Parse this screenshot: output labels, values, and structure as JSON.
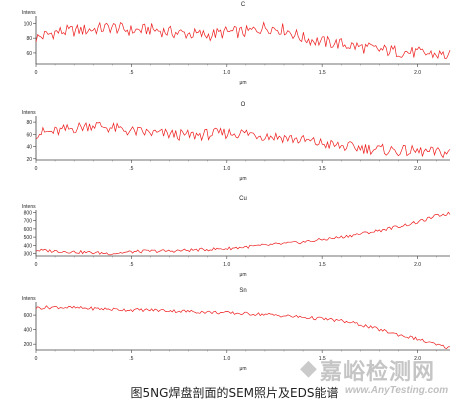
{
  "caption": "图5NG焊盘剖面的SEM照片及EDS能谱",
  "watermark": {
    "cn": "嘉峪检测网",
    "en": "www.AnyTesting.com",
    "logo_icon": "diamond-logo-icon"
  },
  "chart_data": [
    {
      "type": "line",
      "title": "C",
      "ylabel": "Intens",
      "xlabel": "μm",
      "xlim": [
        0,
        2.17
      ],
      "ylim": [
        45,
        110
      ],
      "yticks": [
        60,
        80,
        100
      ],
      "xticks": [
        0,
        0.5,
        1.0,
        1.5,
        2.0
      ],
      "xtick_labels": [
        "0",
        ".5",
        "1.0",
        "1.5",
        "2.0"
      ],
      "color": "#ee1c1c",
      "x": [
        0,
        0.1,
        0.2,
        0.3,
        0.4,
        0.5,
        0.6,
        0.7,
        0.8,
        0.9,
        1.0,
        1.1,
        1.2,
        1.3,
        1.4,
        1.5,
        1.6,
        1.7,
        1.8,
        1.9,
        2.0,
        2.1,
        2.17
      ],
      "y": [
        80,
        88,
        90,
        92,
        95,
        90,
        92,
        88,
        86,
        84,
        88,
        88,
        95,
        92,
        80,
        75,
        72,
        68,
        64,
        62,
        60,
        58,
        56
      ]
    },
    {
      "type": "line",
      "title": "O",
      "ylabel": "Intens",
      "xlabel": "μm",
      "xlim": [
        0,
        2.17
      ],
      "ylim": [
        18,
        90
      ],
      "yticks": [
        20,
        40,
        60,
        80
      ],
      "xticks": [
        0,
        0.5,
        1.0,
        1.5,
        2.0
      ],
      "xtick_labels": [
        "0",
        ".5",
        "1.0",
        "1.5",
        "2.0"
      ],
      "color": "#ee1c1c",
      "x": [
        0,
        0.1,
        0.2,
        0.3,
        0.4,
        0.5,
        0.6,
        0.7,
        0.8,
        0.9,
        1.0,
        1.1,
        1.2,
        1.3,
        1.4,
        1.5,
        1.6,
        1.7,
        1.8,
        1.9,
        2.0,
        2.1,
        2.17
      ],
      "y": [
        62,
        64,
        70,
        76,
        70,
        65,
        62,
        60,
        58,
        60,
        62,
        62,
        58,
        55,
        50,
        45,
        40,
        38,
        35,
        33,
        32,
        30,
        30
      ]
    },
    {
      "type": "line",
      "title": "Cu",
      "ylabel": "Intens",
      "xlabel": "μm",
      "xlim": [
        0,
        2.17
      ],
      "ylim": [
        270,
        830
      ],
      "yticks": [
        300,
        400,
        500,
        600,
        700,
        800
      ],
      "xticks": [
        0,
        0.5,
        1.0,
        1.5,
        2.0
      ],
      "xtick_labels": [
        "0",
        ".5",
        "1.0",
        "1.5",
        "2.0"
      ],
      "color": "#ee1c1c",
      "x": [
        0,
        0.1,
        0.2,
        0.3,
        0.4,
        0.5,
        0.6,
        0.7,
        0.8,
        0.9,
        1.0,
        1.1,
        1.2,
        1.3,
        1.4,
        1.5,
        1.6,
        1.7,
        1.8,
        1.9,
        2.0,
        2.1,
        2.17
      ],
      "y": [
        340,
        330,
        320,
        310,
        300,
        320,
        330,
        330,
        340,
        350,
        360,
        380,
        400,
        420,
        440,
        470,
        500,
        540,
        580,
        630,
        680,
        760,
        790
      ]
    },
    {
      "type": "line",
      "title": "Sn",
      "ylabel": "Intens",
      "xlabel": "μm",
      "xlim": [
        0,
        2.17
      ],
      "ylim": [
        120,
        780
      ],
      "yticks": [
        200,
        400,
        600
      ],
      "xticks": [
        0,
        0.5,
        1.0,
        1.5,
        2.0
      ],
      "xtick_labels": [
        "0",
        ".5",
        "1.0",
        "1.5",
        "2.0"
      ],
      "color": "#ee1c1c",
      "x": [
        0,
        0.1,
        0.2,
        0.3,
        0.4,
        0.5,
        0.6,
        0.7,
        0.8,
        0.9,
        1.0,
        1.1,
        1.2,
        1.3,
        1.4,
        1.5,
        1.6,
        1.7,
        1.8,
        1.9,
        2.0,
        2.1,
        2.17
      ],
      "y": [
        700,
        710,
        700,
        690,
        680,
        670,
        670,
        660,
        650,
        640,
        630,
        620,
        610,
        590,
        570,
        550,
        520,
        470,
        400,
        330,
        270,
        190,
        150
      ]
    }
  ]
}
